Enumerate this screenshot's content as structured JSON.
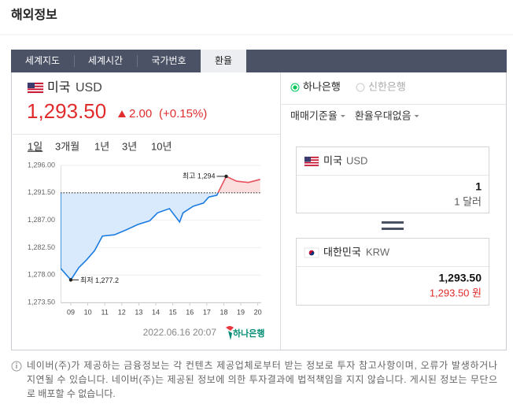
{
  "header": {
    "title": "해외정보"
  },
  "tabs": [
    "세계지도",
    "세계시간",
    "국가번호",
    "환율"
  ],
  "active_tab": 3,
  "quote": {
    "country": "미국",
    "currency": "USD",
    "rate": "1,293.50",
    "change": "2.00",
    "change_pct": "(+0.15%)"
  },
  "periods": [
    "1일",
    "3개월",
    "1년",
    "3년",
    "10년"
  ],
  "active_period": 0,
  "chart_data": {
    "type": "line",
    "x": [
      8.4,
      8.4,
      9.0,
      9.47,
      9.93,
      10.4,
      10.86,
      11.56,
      12.25,
      12.95,
      13.64,
      14.1,
      14.8,
      15.4,
      15.6,
      16.2,
      16.8,
      17.12,
      17.59,
      18.14,
      18.75,
      19.44,
      20.14
    ],
    "values": [
      1291.5,
      1279.1,
      1277.2,
      1279.2,
      1280.5,
      1282.0,
      1284.4,
      1284.6,
      1285.4,
      1286.3,
      1286.9,
      1288.2,
      1288.9,
      1286.7,
      1288.2,
      1289.3,
      1289.8,
      1290.8,
      1291.1,
      1294.2,
      1293.4,
      1293.2,
      1293.7
    ],
    "reference_line": 1291.5,
    "colors": {
      "down": "#1c7ce0",
      "down_fill": "#d9eafc",
      "up": "#e8505b",
      "up_fill": "#fbdede"
    },
    "xlim": [
      8.4,
      20.2
    ],
    "ylim": [
      1273.5,
      1296
    ],
    "xticks": [
      {
        "value": 9,
        "label": "09"
      },
      10,
      11,
      12,
      13,
      14,
      15,
      16,
      17,
      18,
      19,
      20
    ],
    "yticks": [
      {
        "value": 1296,
        "label": "1,296.00"
      },
      {
        "value": 1291.5,
        "label": "1,291.50"
      },
      {
        "value": 1287,
        "label": "1,287.00"
      },
      {
        "value": 1282.5,
        "label": "1,282.50"
      },
      {
        "value": 1278,
        "label": "1,278.00"
      },
      {
        "value": 1273.5,
        "label": "1,273.50"
      }
    ],
    "grid": true,
    "annotations": {
      "max": "최고 1,294",
      "min": "최저 1,277.2"
    }
  },
  "timestamp": "2022.06.16 20:07",
  "bank_logo": "하나은행",
  "banks": [
    "하나은행",
    "신한은행"
  ],
  "selected_bank": 0,
  "dropdowns": [
    "매매기준율",
    "환율우대없음"
  ],
  "converter": {
    "from": {
      "country": "미국",
      "currency": "USD",
      "amount": "1",
      "amount_text": "1 달러"
    },
    "to": {
      "country": "대한민국",
      "currency": "KRW",
      "amount": "1,293.50",
      "amount_text": "1,293.50 원"
    }
  },
  "disclaimer": [
    "네이버(주)가 제공하는 금융정보는 각 컨텐츠 제공업체로부터 받는 정보로 투자 참고사항이며, 오류가 발생하거나",
    "지연될 수 있습니다. 네이버(주)는 제공된 정보에 의한 투자결과에 법적책임을 지지 않습니다. 게시된 정보는 무단으",
    "로 배포할 수 없습니다."
  ]
}
